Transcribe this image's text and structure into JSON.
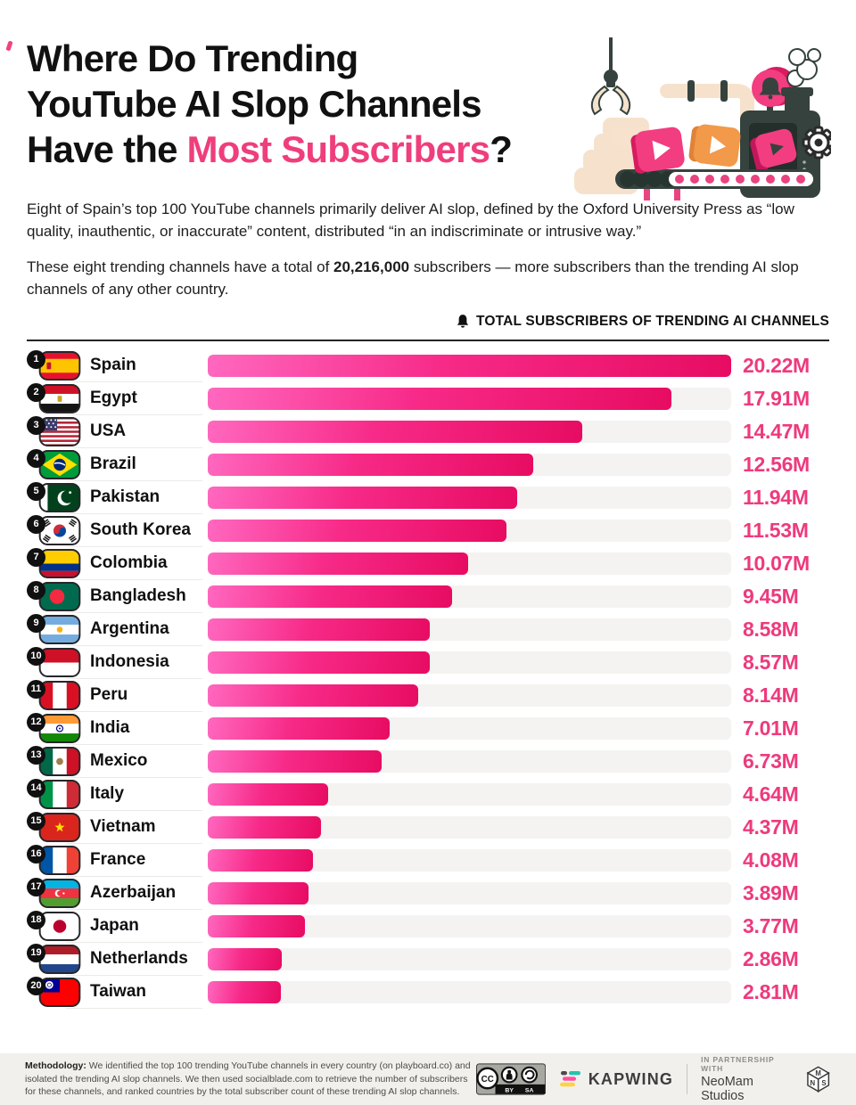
{
  "page": {
    "accent": "#ef3e7c",
    "bar_gradient": [
      "#ff68bf",
      "#e70c62"
    ],
    "track_color": "#f4f3f1"
  },
  "header": {
    "title_line1": "Where Do Trending",
    "title_line2": "YouTube AI Slop Channels",
    "title_line3_prefix": "Have the ",
    "title_line3_accent": "Most Subscribers",
    "title_line3_suffix": "?"
  },
  "intro": {
    "para1": "Eight of Spain’s top 100 YouTube channels primarily deliver AI slop, defined by the Oxford University Press as “low quality, inauthentic, or inaccurate” content, distributed “in an indiscriminate or intrusive way.”",
    "para2_prefix": "These eight trending channels have a total of ",
    "para2_bold": "20,216,000",
    "para2_suffix": " subscribers — more subscribers than the trending AI slop channels of any other country."
  },
  "chart_header": {
    "icon": "bell-icon",
    "label": "TOTAL SUBSCRIBERS OF TRENDING AI CHANNELS"
  },
  "chart_data": {
    "type": "bar",
    "orientation": "horizontal",
    "title": "Total subscribers of trending AI channels",
    "unit": "millions of subscribers",
    "xlim": [
      0,
      20.22
    ],
    "grid": false,
    "legend": false,
    "ranks": [
      1,
      2,
      3,
      4,
      5,
      6,
      7,
      8,
      9,
      10,
      11,
      12,
      13,
      14,
      15,
      16,
      17,
      18,
      19,
      20
    ],
    "categories": [
      "Spain",
      "Egypt",
      "USA",
      "Brazil",
      "Pakistan",
      "South Korea",
      "Colombia",
      "Bangladesh",
      "Argentina",
      "Indonesia",
      "Peru",
      "India",
      "Mexico",
      "Italy",
      "Vietnam",
      "France",
      "Azerbaijan",
      "Japan",
      "Netherlands",
      "Taiwan"
    ],
    "values": [
      20.22,
      17.91,
      14.47,
      12.56,
      11.94,
      11.53,
      10.07,
      9.45,
      8.58,
      8.57,
      8.14,
      7.01,
      6.73,
      4.64,
      4.37,
      4.08,
      3.89,
      3.77,
      2.86,
      2.81
    ],
    "value_labels": [
      "20.22M",
      "17.91M",
      "14.47M",
      "12.56M",
      "11.94M",
      "11.53M",
      "10.07M",
      "9.45M",
      "8.58M",
      "8.57M",
      "8.14M",
      "7.01M",
      "6.73M",
      "4.64M",
      "4.37M",
      "4.08M",
      "3.89M",
      "3.77M",
      "2.86M",
      "2.81M"
    ],
    "flags": [
      "es",
      "eg",
      "us",
      "br",
      "pk",
      "kr",
      "co",
      "bd",
      "ar",
      "id",
      "pe",
      "in",
      "mx",
      "it",
      "vn",
      "fr",
      "az",
      "jp",
      "nl",
      "tw"
    ]
  },
  "footer": {
    "methodology_label": "Methodology:",
    "methodology_text": " We identified the top 100 trending YouTube channels in every country (on playboard.co) and isolated the trending AI slop channels. We then used socialblade.com to retrieve the number of subscribers for these channels, and ranked countries by the total subscriber count of these trending AI slop channels.",
    "cc": "CC",
    "by": "BY",
    "sa": "SA",
    "kapwing": "KAPWING",
    "partnership_line1": "IN PARTNERSHIP WITH",
    "partnership_line2": "NeoMam Studios"
  }
}
